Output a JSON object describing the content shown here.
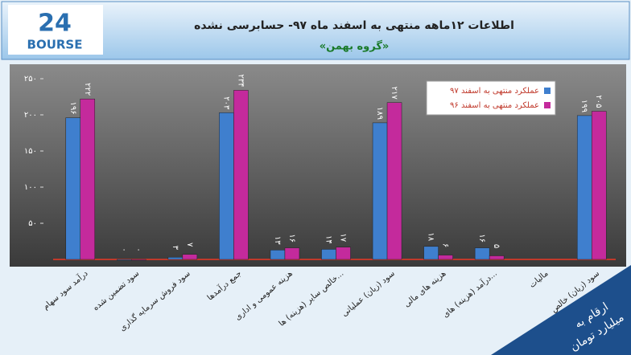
{
  "logo": {
    "number": "24",
    "name": "BOURSE"
  },
  "chart_data": {
    "type": "bar",
    "title": "اطلاعات ۱۲ماهه منتهی به اسفند ماه ۹۷- حسابرسی نشده",
    "subtitle": "«گروه بهمن»",
    "unit_note": [
      "ارقام به",
      "میلیارد تومان"
    ],
    "categories": [
      "درآمد سود سهام",
      "سود تضمین شده",
      "سود فروش سرمایه گذاری",
      "جمع درآمدها",
      "هزینه عمومی و اداری",
      "خالص سایر (هزینه) ها...",
      "سود (زیان) عملیاتی",
      "هزینه های مالی",
      "درآمد (هزینه) های...",
      "مالیات",
      "سود (زیان) خالص"
    ],
    "series": [
      {
        "name": "عملکرد منتهی به اسفند ۹۷",
        "color": "#3f7fce",
        "values": [
          196,
          0,
          3,
          203,
          13,
          14,
          189,
          18,
          16,
          null,
          199
        ],
        "value_labels": [
          "۱۹۶",
          "۰",
          "۳",
          "۲۰۳",
          "۱۳",
          "۱۴",
          "۱۸۹",
          "۱۸",
          "۱۶",
          null,
          "۱۹۹"
        ]
      },
      {
        "name": "عملکرد منتهی به اسفند ۹۶",
        "color": "#c42a9c",
        "values": [
          222,
          0,
          7,
          234,
          16,
          17,
          217,
          6,
          5,
          null,
          205
        ],
        "value_labels": [
          "۲۲۲",
          "۰",
          "۷",
          "۲۳۴",
          "۱۶",
          "۱۷",
          "۲۱۷",
          "۶",
          "۵",
          null,
          "۲۰۵"
        ]
      }
    ],
    "ylim": [
      0,
      250
    ],
    "yticks": [
      {
        "value": 50,
        "label": "۵۰"
      },
      {
        "value": 100,
        "label": "۱۰۰"
      },
      {
        "value": 150,
        "label": "۱۵۰"
      },
      {
        "value": 200,
        "label": "۲۰۰"
      },
      {
        "value": 250,
        "label": "۲۵۰"
      }
    ],
    "grid": false,
    "legend": "top-right"
  }
}
